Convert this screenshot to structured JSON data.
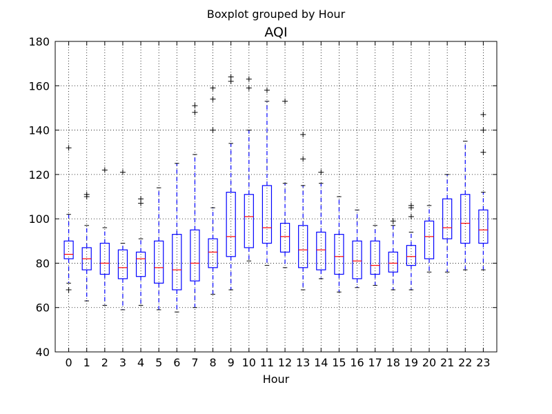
{
  "chart_data": {
    "type": "boxplot",
    "suptitle": "Boxplot grouped by Hour",
    "title": "AQI",
    "xlabel": "Hour",
    "ylabel": "",
    "ylim": [
      40,
      180
    ],
    "yticks": [
      40,
      60,
      80,
      100,
      120,
      140,
      160,
      180
    ],
    "grid": true,
    "colors": {
      "box": "#0000ff",
      "whisker": "#0000ff",
      "median": "#ff0000",
      "cap": "#000000",
      "flier": "#000000"
    },
    "categories": [
      "0",
      "1",
      "2",
      "3",
      "4",
      "5",
      "6",
      "7",
      "8",
      "9",
      "10",
      "11",
      "12",
      "13",
      "14",
      "15",
      "16",
      "17",
      "18",
      "19",
      "20",
      "21",
      "22",
      "23"
    ],
    "boxes": [
      {
        "q1": 82,
        "median": 84,
        "q3": 90,
        "whislo": 71,
        "whishi": 102,
        "fliers": [
          68,
          132
        ]
      },
      {
        "q1": 77,
        "median": 82,
        "q3": 87,
        "whislo": 63,
        "whishi": 97,
        "fliers": [
          110,
          111
        ]
      },
      {
        "q1": 75,
        "median": 80,
        "q3": 89,
        "whislo": 61,
        "whishi": 96,
        "fliers": [
          122
        ]
      },
      {
        "q1": 73,
        "median": 78,
        "q3": 86,
        "whislo": 59,
        "whishi": 89,
        "fliers": [
          121
        ]
      },
      {
        "q1": 74,
        "median": 82,
        "q3": 85,
        "whislo": 61,
        "whishi": 91,
        "fliers": [
          107,
          109
        ]
      },
      {
        "q1": 71,
        "median": 78,
        "q3": 90,
        "whislo": 59,
        "whishi": 114,
        "fliers": []
      },
      {
        "q1": 68,
        "median": 77,
        "q3": 93,
        "whislo": 58,
        "whishi": 125,
        "fliers": []
      },
      {
        "q1": 72,
        "median": 80,
        "q3": 95,
        "whislo": 60,
        "whishi": 129,
        "fliers": [
          148,
          151
        ]
      },
      {
        "q1": 78,
        "median": 85,
        "q3": 91,
        "whislo": 66,
        "whishi": 105,
        "fliers": [
          140,
          154,
          159
        ]
      },
      {
        "q1": 83,
        "median": 92,
        "q3": 112,
        "whislo": 68,
        "whishi": 134,
        "fliers": [
          162,
          164
        ]
      },
      {
        "q1": 87,
        "median": 101,
        "q3": 111,
        "whislo": 81,
        "whishi": 140,
        "fliers": [
          159,
          163
        ]
      },
      {
        "q1": 89,
        "median": 96,
        "q3": 115,
        "whislo": 79,
        "whishi": 153,
        "fliers": [
          158
        ]
      },
      {
        "q1": 85,
        "median": 92,
        "q3": 98,
        "whislo": 78,
        "whishi": 116,
        "fliers": [
          153
        ]
      },
      {
        "q1": 78,
        "median": 86,
        "q3": 97,
        "whislo": 68,
        "whishi": 115,
        "fliers": [
          127,
          138
        ]
      },
      {
        "q1": 77,
        "median": 86,
        "q3": 94,
        "whislo": 73,
        "whishi": 116,
        "fliers": [
          121
        ]
      },
      {
        "q1": 75,
        "median": 83,
        "q3": 93,
        "whislo": 67,
        "whishi": 110,
        "fliers": []
      },
      {
        "q1": 73,
        "median": 81,
        "q3": 90,
        "whislo": 69,
        "whishi": 104,
        "fliers": []
      },
      {
        "q1": 75,
        "median": 79,
        "q3": 90,
        "whislo": 70,
        "whishi": 97,
        "fliers": []
      },
      {
        "q1": 76,
        "median": 80,
        "q3": 85,
        "whislo": 68,
        "whishi": 97,
        "fliers": [
          99
        ]
      },
      {
        "q1": 79,
        "median": 83,
        "q3": 88,
        "whislo": 68,
        "whishi": 94,
        "fliers": [
          101,
          105,
          106
        ]
      },
      {
        "q1": 82,
        "median": 92,
        "q3": 99,
        "whislo": 76,
        "whishi": 106,
        "fliers": []
      },
      {
        "q1": 91,
        "median": 96,
        "q3": 109,
        "whislo": 76,
        "whishi": 120,
        "fliers": []
      },
      {
        "q1": 89,
        "median": 98,
        "q3": 111,
        "whislo": 77,
        "whishi": 135,
        "fliers": []
      },
      {
        "q1": 89,
        "median": 95,
        "q3": 104,
        "whislo": 77,
        "whishi": 112,
        "fliers": [
          130,
          140,
          147
        ]
      }
    ]
  }
}
